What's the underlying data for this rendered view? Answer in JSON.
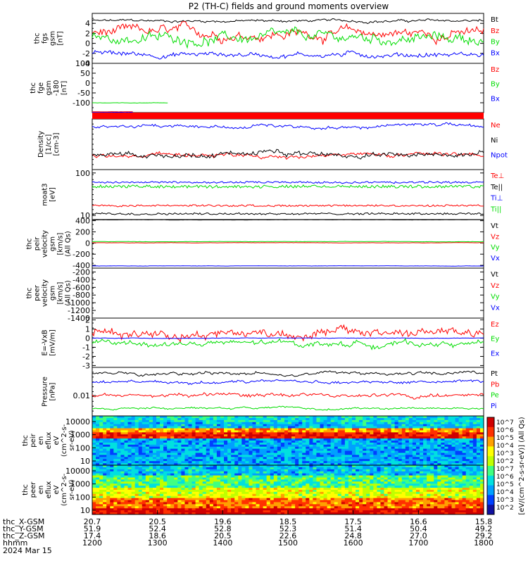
{
  "title": "P2 (TH-C) fields and ground moments overview",
  "chart_data": [
    {
      "type": "line",
      "panel": "fgs",
      "ylabel_lines": [
        "thc",
        "fgs",
        "gsm",
        "[nT]"
      ],
      "ylim": [
        -4,
        6
      ],
      "yticks": [
        4,
        2,
        0,
        -2,
        -4
      ],
      "series": [
        {
          "name": "Bt",
          "color": "#000000",
          "level": 4.5,
          "noise": 0.5
        },
        {
          "name": "Bz",
          "color": "#ff0000",
          "level": 2.0,
          "noise": 2.0
        },
        {
          "name": "By",
          "color": "#00dd00",
          "level": 1.0,
          "noise": 2.0
        },
        {
          "name": "Bx",
          "color": "#0000ff",
          "level": -2.2,
          "noise": 1.0
        }
      ]
    },
    {
      "type": "line",
      "panel": "fge",
      "ylabel_lines": [
        "thc",
        "fge",
        "gsm",
        "-180",
        "[nT]"
      ],
      "ylim": [
        -150,
        100
      ],
      "yticks": [
        100,
        50,
        0,
        -50,
        -100
      ],
      "series": [
        {
          "name": "Bz",
          "color": "#ff0000",
          "level": -146,
          "noise": 1
        },
        {
          "name": "By",
          "color": "#00dd00",
          "level": -100,
          "noise": 2
        },
        {
          "name": "Bx",
          "color": "#0000ff",
          "level": -149,
          "noise": 1
        }
      ]
    },
    {
      "type": "line",
      "panel": "density",
      "ylabel_lines": [
        "Density",
        "[1/cc]",
        "[cm-3]"
      ],
      "log": true,
      "series": [
        {
          "name": "Ne",
          "color": "#ff0000",
          "level": 0.72,
          "noise": 0.08
        },
        {
          "name": "Ni",
          "color": "#000000",
          "level": 0.7,
          "noise": 0.1
        },
        {
          "name": "Npot",
          "color": "#0000ff",
          "level": 0.15,
          "noise": 0.06
        }
      ]
    },
    {
      "type": "line",
      "panel": "temperature",
      "ylabel_lines": [
        "moat3",
        "[eV]"
      ],
      "log": true,
      "ylim": [
        8,
        120
      ],
      "yticks": [
        100,
        10
      ],
      "series": [
        {
          "name": "Te⊥",
          "color": "#ff0000",
          "level": 17,
          "noise": 0.1
        },
        {
          "name": "Te||",
          "color": "#000000",
          "level": 11,
          "noise": 0.1
        },
        {
          "name": "Ti⊥",
          "color": "#0000ff",
          "level": 60,
          "noise": 0.1
        },
        {
          "name": "Ti||",
          "color": "#00dd00",
          "level": 48,
          "noise": 0.15
        }
      ]
    },
    {
      "type": "line",
      "panel": "peir_velocity",
      "ylabel_lines": [
        "thc",
        "peir",
        "velocity",
        "gsm",
        "[km/s]",
        "(All Qs)"
      ],
      "ylim": [
        -450,
        420
      ],
      "yticks": [
        400,
        200,
        0,
        -200,
        -400
      ],
      "series": [
        {
          "name": "Vt",
          "color": "#000000",
          "level": 415,
          "noise": 3
        },
        {
          "name": "Vz",
          "color": "#ff0000",
          "level": 5,
          "noise": 4
        },
        {
          "name": "Vy",
          "color": "#00dd00",
          "level": 25,
          "noise": 5
        },
        {
          "name": "Vx",
          "color": "#0000ff",
          "level": -410,
          "noise": 5
        }
      ]
    },
    {
      "type": "line",
      "panel": "peer_velocity",
      "ylabel_lines": [
        "thc",
        "peer",
        "velocity",
        "gsm",
        "[km/s]",
        "(All Qs)"
      ],
      "ylim": [
        -1400,
        -100
      ],
      "yticks": [
        -200,
        -400,
        -600,
        -800,
        -1000,
        -1200,
        -1400
      ],
      "series": [
        {
          "name": "Vt",
          "color": "#000000",
          "level": null,
          "noise": 0
        },
        {
          "name": "Vz",
          "color": "#ff0000",
          "level": null,
          "noise": 0
        },
        {
          "name": "Vy",
          "color": "#00dd00",
          "level": null,
          "noise": 0
        },
        {
          "name": "Vx",
          "color": "#0000ff",
          "level": null,
          "noise": 0
        }
      ]
    },
    {
      "type": "line",
      "panel": "efield",
      "ylabel_lines": [
        "E=-VxB",
        "[mV/m]"
      ],
      "ylim": [
        -3.2,
        2.2
      ],
      "yticks": [
        2,
        1,
        0,
        -1,
        -2,
        -3
      ],
      "series": [
        {
          "name": "Ez",
          "color": "#ff0000",
          "level": 0.6,
          "noise": 1.0
        },
        {
          "name": "Ey",
          "color": "#00dd00",
          "level": -0.6,
          "noise": 0.6
        },
        {
          "name": "Ex",
          "color": "#0000ff",
          "level": 0.0,
          "noise": 0.05
        }
      ]
    },
    {
      "type": "line",
      "panel": "pressure",
      "ylabel_lines": [
        "Pressure",
        "[nPa]"
      ],
      "log": true,
      "yticks": [
        0.01
      ],
      "series": [
        {
          "name": "Pt",
          "color": "#000000",
          "level": 0.12,
          "noise": 0.06
        },
        {
          "name": "Pb",
          "color": "#ff0000",
          "level": 0.58,
          "noise": 0.07
        },
        {
          "name": "Pe",
          "color": "#00dd00",
          "level": 0.85,
          "noise": 0.04
        },
        {
          "name": "Pi",
          "color": "#0000ff",
          "level": 0.3,
          "noise": 0.06
        }
      ]
    },
    {
      "type": "heatmap",
      "panel": "peir_eflux",
      "ylabel_lines": [
        "thc",
        "peir",
        "en",
        "eflux",
        "eV",
        "(cm^2-s-",
        "sr-eV)"
      ],
      "yticks": [
        "10000",
        "1000",
        "100",
        "10"
      ]
    },
    {
      "type": "heatmap",
      "panel": "peer_eflux",
      "ylabel_lines": [
        "thc",
        "peer",
        "en",
        "eflux",
        "eV",
        "(cm^2-s-",
        "sr-eV)"
      ],
      "yticks": [
        "10000",
        "1000",
        "100",
        "10"
      ]
    }
  ],
  "colorbar": {
    "ticks": [
      "10^7",
      "10^6",
      "10^5",
      "10^4",
      "10^3",
      "10^2",
      "10^7",
      "10^6",
      "10^5",
      "10^4",
      "10^3",
      "10^2"
    ],
    "label": "[eV/(cm^2-s-sr-eV)] (All Qs)"
  },
  "x_axis": {
    "rows": [
      {
        "label": "thc_X-GSM",
        "values": [
          "20.7",
          "20.5",
          "19.6",
          "18.5",
          "17.5",
          "16.6",
          "15.8"
        ]
      },
      {
        "label": "thc_Y-GSM",
        "values": [
          "51.9",
          "52.4",
          "52.8",
          "52.3",
          "51.4",
          "50.4",
          "49.2"
        ]
      },
      {
        "label": "thc_Z-GSM",
        "values": [
          "17.4",
          "18.6",
          "20.5",
          "22.6",
          "24.8",
          "27.0",
          "29.2"
        ]
      },
      {
        "label": "hhmm",
        "values": [
          "1200",
          "1300",
          "1400",
          "1500",
          "1600",
          "1700",
          "1800"
        ]
      }
    ],
    "date": "2024 Mar 15"
  }
}
